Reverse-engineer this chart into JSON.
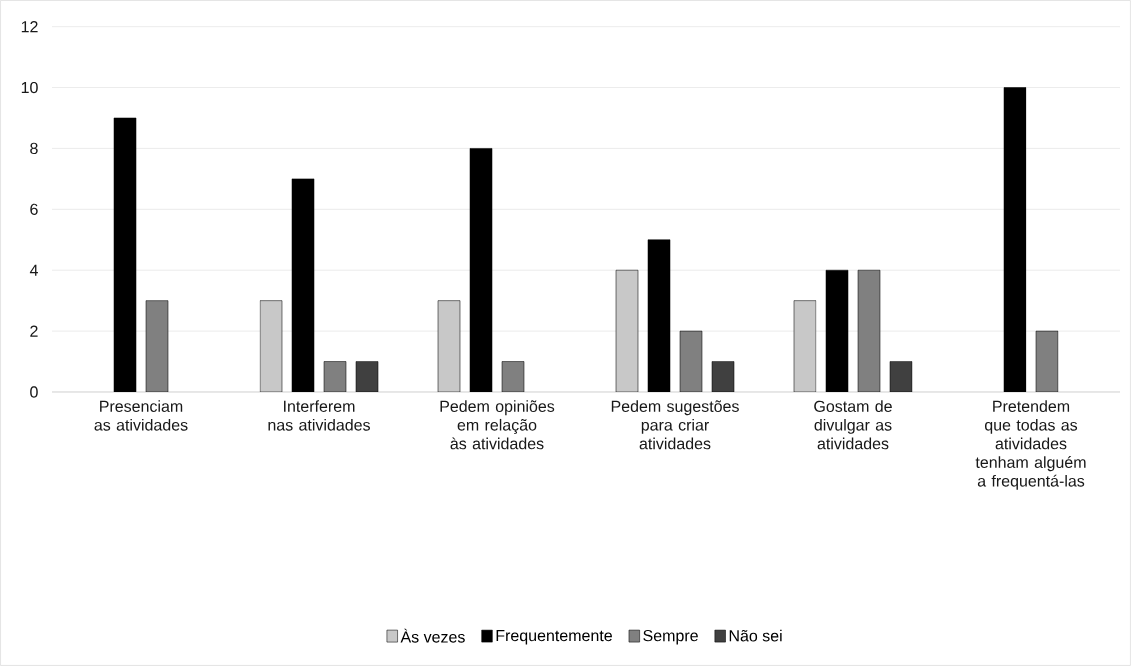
{
  "chart_data": {
    "type": "bar",
    "categories": [
      "Presenciam as atividades",
      "Interferem nas atividades",
      "Pedem opiniões em relação às atividades",
      "Pedem sugestões para criar atividades",
      "Gostam de divulgar as atividades",
      "Pretendem que todas as atividades tenham alguém a frequentá-las"
    ],
    "series": [
      {
        "name": "Às vezes",
        "color": "#c8c8c8",
        "values": [
          null,
          3,
          3,
          4,
          3,
          null
        ]
      },
      {
        "name": "Frequentemente",
        "color": "#000000",
        "values": [
          9,
          7,
          8,
          5,
          4,
          10
        ]
      },
      {
        "name": "Sempre",
        "color": "#808080",
        "values": [
          3,
          1,
          1,
          2,
          4,
          2
        ]
      },
      {
        "name": "Não sei",
        "color": "#404040",
        "values": [
          null,
          1,
          null,
          1,
          1,
          null
        ]
      }
    ],
    "ylim": [
      0,
      12
    ],
    "yticks": [
      0,
      2,
      4,
      6,
      8,
      10,
      12
    ],
    "grid": "y",
    "legend": "bottom"
  }
}
